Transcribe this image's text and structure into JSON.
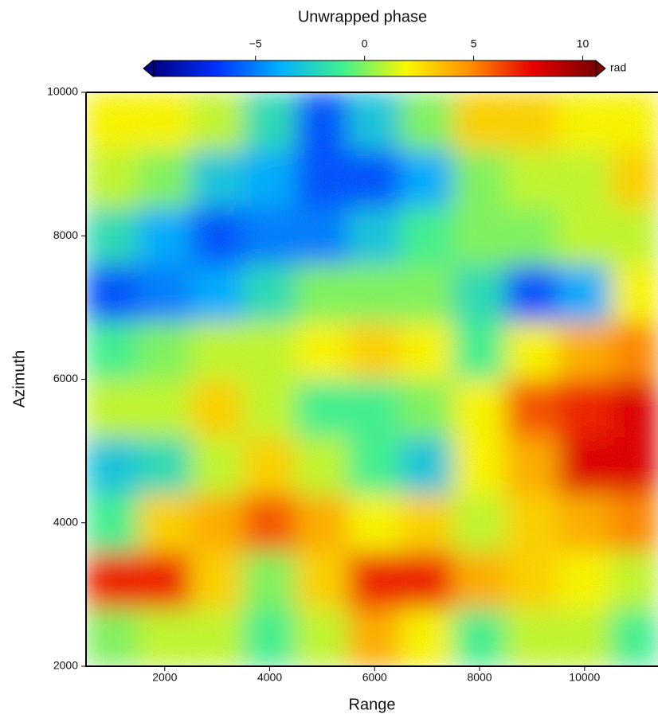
{
  "chart_data": {
    "type": "heatmap",
    "title": "Unwrapped phase",
    "xlabel": "Range",
    "ylabel": "Azimuth",
    "xlim": [
      500,
      11400
    ],
    "ylim": [
      2000,
      10000
    ],
    "xticks": [
      2000,
      4000,
      6000,
      8000,
      10000
    ],
    "yticks": [
      2000,
      4000,
      6000,
      8000,
      10000
    ],
    "xbins": [
      500,
      1500,
      2500,
      3500,
      4500,
      5500,
      6500,
      7500,
      8500,
      9500,
      10500,
      11400
    ],
    "ybins": [
      2000,
      2800,
      3600,
      4400,
      5200,
      6000,
      6800,
      7600,
      8400,
      9200,
      10000
    ],
    "z": [
      [
        0,
        1,
        1,
        -1,
        1,
        4,
        2,
        -1,
        1,
        1,
        -1
      ],
      [
        7,
        7,
        3,
        0,
        3,
        7,
        7,
        4,
        3,
        2,
        1
      ],
      [
        -1,
        3,
        4,
        6,
        4,
        2,
        3,
        1,
        3,
        4,
        5
      ],
      [
        -3,
        -2,
        1,
        3,
        1,
        -1,
        -3,
        2,
        4,
        8,
        8
      ],
      [
        1,
        1,
        3,
        1,
        -1,
        -1,
        0,
        2,
        6,
        7,
        8
      ],
      [
        -1,
        0,
        1,
        1,
        2,
        3,
        2,
        -1,
        2,
        4,
        5
      ],
      [
        -6,
        -5,
        -4,
        -2,
        0,
        0,
        0,
        -2,
        -6,
        -4,
        2
      ],
      [
        -2,
        -4,
        -6,
        -5,
        -5,
        -3,
        -1,
        0,
        0,
        1,
        1
      ],
      [
        1,
        0,
        -3,
        -4,
        -6,
        -6,
        -4,
        0,
        1,
        1,
        3
      ],
      [
        2,
        2,
        1,
        -2,
        -6,
        -3,
        0,
        3,
        3,
        2,
        2
      ]
    ],
    "colormap": [
      "#00007f",
      "#0030ff",
      "#00b0ff",
      "#40f090",
      "#f8f800",
      "#ff9000",
      "#e80000",
      "#7a0000"
    ],
    "colorbar": {
      "label": "rad",
      "lim": [
        -9.7,
        10.6
      ],
      "ticks": [
        {
          "value": -5,
          "label": "−5"
        },
        0,
        5,
        10
      ]
    }
  }
}
